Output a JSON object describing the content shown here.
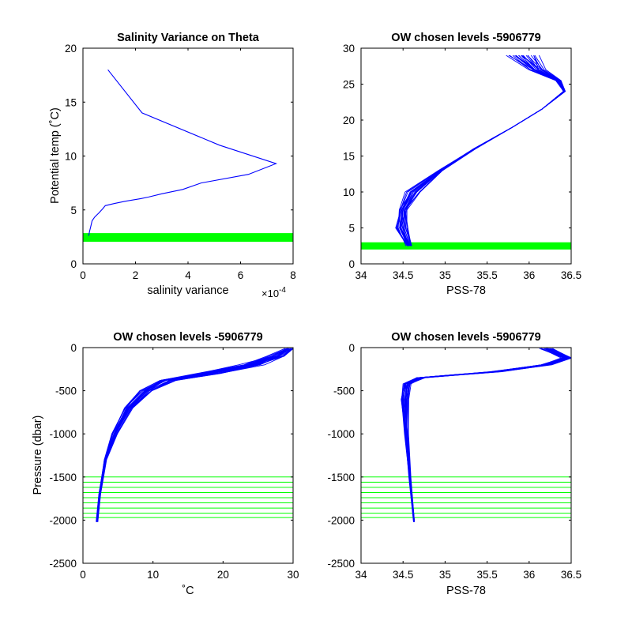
{
  "chart_data": [
    {
      "id": "p1",
      "type": "line",
      "title": "Salinity Variance on Theta",
      "xlabel": "salinity variance",
      "ylabel": "Potential temp (˚C)",
      "x_exponent_label": "×10",
      "x_exponent_power": "-4",
      "xlim": [
        0,
        8
      ],
      "ylim": [
        0,
        20
      ],
      "xticks": [
        0,
        2,
        4,
        6,
        8
      ],
      "yticks": [
        0,
        5,
        10,
        15,
        20
      ],
      "xtick_labels": [
        "0",
        "2",
        "4",
        "6",
        "8"
      ],
      "ytick_labels": [
        "0",
        "5",
        "10",
        "15",
        "20"
      ],
      "grid": false,
      "series": [
        {
          "kind": "line",
          "color": "#0000ff",
          "x": [
            0.95,
            2.25,
            5.2,
            7.35,
            6.3,
            4.5,
            3.8,
            3.0,
            2.5,
            2.2,
            1.6,
            1.2,
            0.85,
            0.75,
            0.6,
            0.45,
            0.35,
            0.3,
            0.25,
            0.22
          ],
          "y": [
            18.0,
            14.0,
            11.0,
            9.3,
            8.3,
            7.5,
            6.9,
            6.5,
            6.2,
            6.05,
            5.8,
            5.6,
            5.4,
            5.1,
            4.7,
            4.35,
            4.0,
            3.5,
            3.0,
            2.6
          ]
        }
      ],
      "bands": [
        {
          "color": "#00ff00",
          "y0": 2.05,
          "y1": 2.85
        }
      ]
    },
    {
      "id": "p2",
      "type": "line",
      "title": "OW chosen levels -5906779",
      "xlabel": "PSS-78",
      "ylabel": "",
      "xlim": [
        34,
        36.5
      ],
      "ylim": [
        0,
        30
      ],
      "xticks": [
        34,
        34.5,
        35,
        35.5,
        36,
        36.5
      ],
      "yticks": [
        0,
        5,
        10,
        15,
        20,
        25,
        30
      ],
      "xtick_labels": [
        "34",
        "34.5",
        "35",
        "35.5",
        "36",
        "36.5"
      ],
      "ytick_labels": [
        "0",
        "5",
        "10",
        "15",
        "20",
        "25",
        "30"
      ],
      "grid": false,
      "series": [
        {
          "kind": "profile_bundle",
          "color": "#0000ff",
          "count": 22,
          "spread_x": [
            0.03,
            0.06,
            0.05,
            0.07,
            0.02,
            0.01,
            0.0,
            0.0,
            0.01,
            0.03,
            0.09,
            0.18
          ],
          "x": [
            34.57,
            34.48,
            34.5,
            34.62,
            34.95,
            35.35,
            35.8,
            36.15,
            36.42,
            36.35,
            36.1,
            35.9
          ],
          "y": [
            2.5,
            5.0,
            7.5,
            10.0,
            13.0,
            16.0,
            19.0,
            21.5,
            24.0,
            25.5,
            27.0,
            29.0
          ]
        }
      ],
      "bands": [
        {
          "color": "#00ff00",
          "y0": 2.0,
          "y1": 3.0
        }
      ]
    },
    {
      "id": "p3",
      "type": "line",
      "title": "OW chosen levels -5906779",
      "xlabel": "˚C",
      "ylabel": "Pressure (dbar)",
      "xlim": [
        0,
        30
      ],
      "ylim": [
        -2500,
        0
      ],
      "xticks": [
        0,
        10,
        20,
        30
      ],
      "yticks": [
        -2500,
        -2000,
        -1500,
        -1000,
        -500,
        0
      ],
      "xtick_labels": [
        "0",
        "10",
        "20",
        "30"
      ],
      "ytick_labels": [
        "-2500",
        "-2000",
        "-1500",
        "-1000",
        "-500",
        "0"
      ],
      "grid": false,
      "series": [
        {
          "kind": "profile_bundle",
          "color": "#0000ff",
          "count": 22,
          "spread_x": [
            0.1,
            0.1,
            0.15,
            0.3,
            0.5,
            0.8,
            1.2,
            1.5,
            1.5,
            1.0,
            0.5
          ],
          "x": [
            2.0,
            2.4,
            3.2,
            4.5,
            6.5,
            9.0,
            12.0,
            18.0,
            24.0,
            27.5,
            29.5
          ],
          "y": [
            -2020,
            -1700,
            -1300,
            -1000,
            -700,
            -500,
            -380,
            -300,
            -200,
            -100,
            -10
          ]
        }
      ],
      "levels": [
        -1500,
        -1560,
        -1620,
        -1680,
        -1740,
        -1800,
        -1860,
        -1920,
        -1970
      ]
    },
    {
      "id": "p4",
      "type": "line",
      "title": "OW chosen levels -5906779",
      "xlabel": "PSS-78",
      "ylabel": "",
      "xlim": [
        34,
        36.5
      ],
      "ylim": [
        -2500,
        0
      ],
      "xticks": [
        34,
        34.5,
        35,
        35.5,
        36,
        36.5
      ],
      "yticks": [
        -2500,
        -2000,
        -1500,
        -1000,
        -500,
        0
      ],
      "xtick_labels": [
        "34",
        "34.5",
        "35",
        "35.5",
        "36",
        "36.5"
      ],
      "ytick_labels": [
        "-2500",
        "-2000",
        "-1500",
        "-1000",
        "-500",
        "0"
      ],
      "grid": false,
      "series": [
        {
          "kind": "profile_bundle",
          "color": "#0000ff",
          "count": 22,
          "spread_x": [
            0.005,
            0.01,
            0.02,
            0.04,
            0.04,
            0.05,
            0.06,
            0.05,
            0.06,
            0.08
          ],
          "x": [
            34.63,
            34.58,
            34.54,
            34.52,
            34.55,
            34.7,
            35.6,
            36.2,
            36.45,
            36.2
          ],
          "y": [
            -2020,
            -1500,
            -1000,
            -600,
            -420,
            -350,
            -280,
            -200,
            -120,
            -10
          ]
        }
      ],
      "levels": [
        -1500,
        -1560,
        -1620,
        -1680,
        -1740,
        -1800,
        -1860,
        -1920,
        -1970
      ]
    }
  ]
}
